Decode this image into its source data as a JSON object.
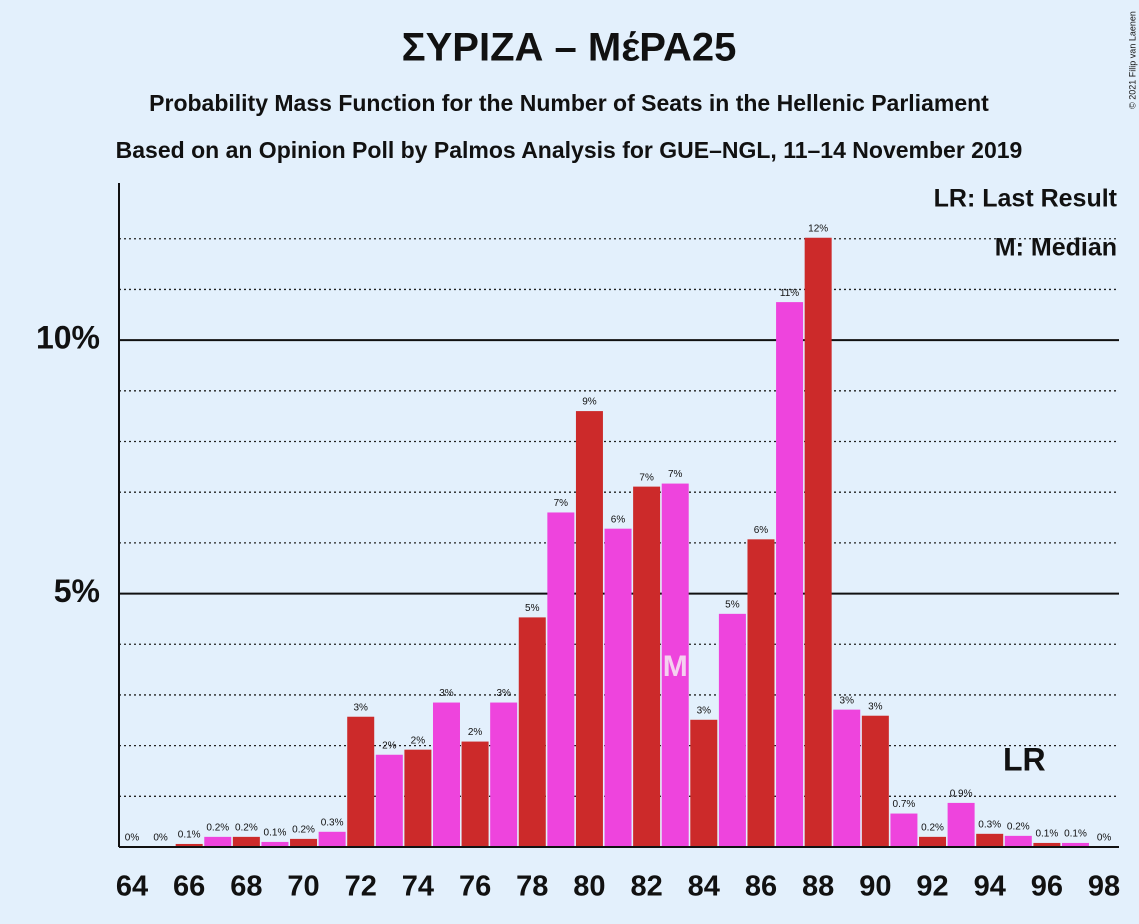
{
  "chart_data": {
    "type": "bar",
    "title": "ΣΥΡΙΖΑ – ΜέΡΑ25",
    "subtitle": "Probability Mass Function for the Number of Seats in the Hellenic Parliament",
    "subtitle2": "Based on an Opinion Poll by Palmos Analysis for GUE–NGL, 11–14 November 2019",
    "copyright": "© 2021 Filip van Laenen",
    "categories": [
      "64",
      null,
      "66",
      null,
      "68",
      null,
      "70",
      null,
      "72",
      null,
      "74",
      null,
      "76",
      null,
      "78",
      null,
      "80",
      null,
      "82",
      null,
      "84",
      null,
      "86",
      null,
      "88",
      null,
      "90",
      null,
      "92",
      null,
      "94",
      null,
      "96",
      null,
      "98"
    ],
    "values": [
      0,
      0,
      0.06,
      0.2,
      0.2,
      0.1,
      0.16,
      0.3,
      2.57,
      1.82,
      1.92,
      2.85,
      2.08,
      2.85,
      4.53,
      6.6,
      8.6,
      6.28,
      7.11,
      7.17,
      2.51,
      4.6,
      6.07,
      10.75,
      12.02,
      2.71,
      2.59,
      0.66,
      0.2,
      0.87,
      0.26,
      0.22,
      0.08,
      0.08,
      0
    ],
    "value_labels": [
      "0%",
      "0%",
      "0.1%",
      "0.2%",
      "0.2%",
      "0.1%",
      "0.2%",
      "0.3%",
      "3%",
      "2%",
      "2%",
      "3%",
      "2%",
      "3%",
      "5%",
      "7%",
      "9%",
      "6%",
      "7%",
      "7%",
      "3%",
      "5%",
      "6%",
      "11%",
      "12%",
      "3%",
      "3%",
      "0.7%",
      "0.2%",
      "0.9%",
      "0.3%",
      "0.2%",
      "0.1%",
      "0.1%",
      "0%"
    ],
    "colors": [
      "#cc2a2a",
      "#ee44dd"
    ],
    "ylim": [
      0,
      13.1
    ],
    "yticks": [
      {
        "value": 5,
        "label": "5%"
      },
      {
        "value": 10,
        "label": "10%"
      }
    ],
    "minor_yticks": [
      1,
      2,
      3,
      4,
      6,
      7,
      8,
      9,
      11,
      12
    ],
    "annotations": [
      {
        "label": "M",
        "index": 19
      },
      {
        "label": "LR",
        "index": 31
      }
    ],
    "legend": [
      "LR: Last Result",
      "M: Median"
    ]
  }
}
